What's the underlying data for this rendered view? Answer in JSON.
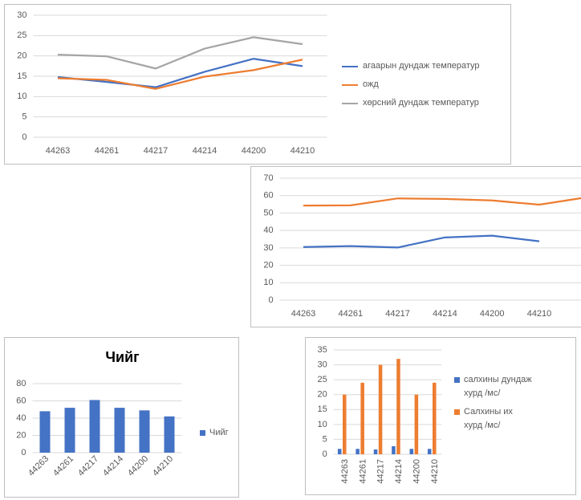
{
  "chart_data": [
    {
      "type": "line",
      "categories": [
        "44263",
        "44261",
        "44217",
        "44214",
        "44200",
        "44210"
      ],
      "series": [
        {
          "name": "агаарын дундаж температур",
          "color": "#4472c4",
          "values": [
            14.8,
            13.6,
            12.3,
            16.1,
            19.3,
            17.5
          ]
        },
        {
          "name": "ожд",
          "color": "#ed7d31",
          "values": [
            14.5,
            14.1,
            11.9,
            14.9,
            16.5,
            19.1
          ]
        },
        {
          "name": "хөрсний дундаж температур",
          "color": "#a5a5a5",
          "values": [
            20.3,
            19.9,
            16.9,
            21.8,
            24.6,
            22.9
          ]
        }
      ],
      "ylim": [
        0,
        30
      ],
      "yticks": [
        0,
        5,
        10,
        15,
        20,
        25,
        30
      ],
      "grid": true,
      "legend": "right"
    },
    {
      "type": "line",
      "categories": [
        "44263",
        "44261",
        "44217",
        "44214",
        "44200",
        "44210",
        null
      ],
      "series": [
        {
          "color": "#4472c4",
          "values": [
            30.5,
            31,
            30.2,
            36,
            37,
            33.8,
            null
          ]
        },
        {
          "color": "#ed7d31",
          "values": [
            54.3,
            54.4,
            58.4,
            58.1,
            57.2,
            54.8,
            59
          ]
        }
      ],
      "ylim": [
        0,
        70
      ],
      "yticks": [
        0,
        10,
        20,
        30,
        40,
        50,
        60,
        70
      ],
      "grid": true
    },
    {
      "type": "bar",
      "title": "Чийг",
      "categories": [
        "44263",
        "44261",
        "44217",
        "44214",
        "44200",
        "44210"
      ],
      "series": [
        {
          "name": "Чийг",
          "color": "#4472c4",
          "values": [
            48,
            52,
            61,
            52,
            49,
            42
          ]
        }
      ],
      "ylim": [
        0,
        80
      ],
      "yticks": [
        0,
        20,
        40,
        60,
        80
      ],
      "grid": true,
      "legend": "right"
    },
    {
      "type": "bar",
      "categories": [
        "44263",
        "44261",
        "44217",
        "44214",
        "44200",
        "44210"
      ],
      "series": [
        {
          "name": "салхины дундаж хурд /мс/",
          "color": "#4472c4",
          "values": [
            1.8,
            1.8,
            1.6,
            2.7,
            1.8,
            1.8
          ]
        },
        {
          "name": "Салхины их хурд /мс/",
          "color": "#ed7d31",
          "values": [
            20,
            24,
            30,
            32,
            20,
            24
          ]
        }
      ],
      "ylim": [
        0,
        35
      ],
      "yticks": [
        0,
        5,
        10,
        15,
        20,
        25,
        30,
        35
      ],
      "grid": true,
      "legend": "right"
    }
  ]
}
